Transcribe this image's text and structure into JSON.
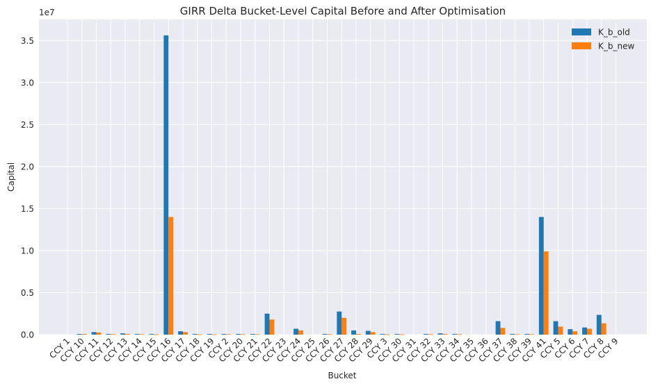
{
  "chart_data": {
    "type": "bar",
    "title": "GIRR Delta Bucket-Level Capital Before and After Optimisation",
    "xlabel": "Bucket",
    "ylabel": "Capital",
    "offset_label": "1e7",
    "ylim": [
      0,
      37500000
    ],
    "yticks": [
      0,
      5000000,
      10000000,
      15000000,
      20000000,
      25000000,
      30000000,
      35000000
    ],
    "ytick_labels": [
      "0.0",
      "0.5",
      "1.0",
      "1.5",
      "2.0",
      "2.5",
      "3.0",
      "3.5"
    ],
    "grid": true,
    "legend_position": "top-right",
    "categories": [
      "CCY 1",
      "CCY 10",
      "CCY 11",
      "CCY 12",
      "CCY 13",
      "CCY 14",
      "CCY 15",
      "CCY 16",
      "CCY 17",
      "CCY 18",
      "CCY 19",
      "CCY 2",
      "CCY 20",
      "CCY 21",
      "CCY 22",
      "CCY 23",
      "CCY 24",
      "CCY 25",
      "CCY 26",
      "CCY 27",
      "CCY 28",
      "CCY 29",
      "CCY 3",
      "CCY 30",
      "CCY 31",
      "CCY 32",
      "CCY 33",
      "CCY 34",
      "CCY 35",
      "CCY 36",
      "CCY 37",
      "CCY 38",
      "CCY 39",
      "CCY 41",
      "CCY 5",
      "CCY 6",
      "CCY 7",
      "CCY 8",
      "CCY 9"
    ],
    "series": [
      {
        "name": "K_b_old",
        "color": "#1f77b4",
        "values": [
          0,
          80000,
          300000,
          80000,
          150000,
          80000,
          80000,
          35600000,
          400000,
          80000,
          80000,
          80000,
          80000,
          80000,
          2500000,
          0,
          700000,
          0,
          80000,
          2750000,
          500000,
          450000,
          80000,
          80000,
          0,
          80000,
          150000,
          80000,
          0,
          0,
          1600000,
          80000,
          80000,
          14000000,
          1600000,
          650000,
          850000,
          2350000,
          0
        ]
      },
      {
        "name": "K_b_new",
        "color": "#ff7f0e",
        "values": [
          0,
          80000,
          250000,
          50000,
          80000,
          50000,
          30000,
          14000000,
          300000,
          30000,
          30000,
          50000,
          50000,
          50000,
          1800000,
          0,
          500000,
          0,
          50000,
          2000000,
          80000,
          300000,
          30000,
          30000,
          0,
          50000,
          80000,
          50000,
          0,
          0,
          800000,
          50000,
          50000,
          9900000,
          950000,
          400000,
          700000,
          1350000,
          0
        ]
      }
    ]
  }
}
